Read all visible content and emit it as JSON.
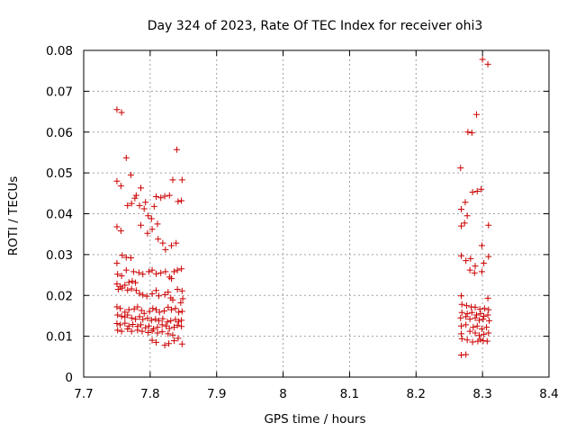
{
  "chart_data": {
    "type": "scatter",
    "title": "Day 324 of 2023, Rate Of TEC Index for receiver ohi3",
    "xlabel": "GPS time / hours",
    "ylabel": "ROTI / TECUs",
    "xlim": [
      7.7,
      8.4
    ],
    "ylim": [
      0,
      0.08
    ],
    "x_ticks": [
      "7.7",
      "7.8",
      "7.9",
      "8",
      "8.1",
      "8.2",
      "8.3",
      "8.4"
    ],
    "y_ticks": [
      "0",
      "0.01",
      "0.02",
      "0.03",
      "0.04",
      "0.05",
      "0.06",
      "0.07",
      "0.08"
    ],
    "grid": true,
    "marker": "plus",
    "color": "#cc0000",
    "points": [
      [
        7.75,
        0.0655
      ],
      [
        7.757,
        0.0648
      ],
      [
        7.764,
        0.0537
      ],
      [
        7.771,
        0.0495
      ],
      [
        7.75,
        0.048
      ],
      [
        7.756,
        0.0468
      ],
      [
        7.766,
        0.042
      ],
      [
        7.772,
        0.0425
      ],
      [
        7.777,
        0.0438
      ],
      [
        7.779,
        0.0445
      ],
      [
        7.786,
        0.0463
      ],
      [
        7.784,
        0.042
      ],
      [
        7.791,
        0.0412
      ],
      [
        7.793,
        0.0428
      ],
      [
        7.797,
        0.0395
      ],
      [
        7.802,
        0.0388
      ],
      [
        7.806,
        0.0418
      ],
      [
        7.809,
        0.0442
      ],
      [
        7.816,
        0.0439
      ],
      [
        7.822,
        0.0443
      ],
      [
        7.829,
        0.0445
      ],
      [
        7.834,
        0.0483
      ],
      [
        7.84,
        0.0557
      ],
      [
        7.842,
        0.043
      ],
      [
        7.848,
        0.0483
      ],
      [
        7.847,
        0.0432
      ],
      [
        7.75,
        0.0368
      ],
      [
        7.756,
        0.0358
      ],
      [
        7.786,
        0.0372
      ],
      [
        7.796,
        0.0352
      ],
      [
        7.803,
        0.0362
      ],
      [
        7.811,
        0.0375
      ],
      [
        7.812,
        0.0338
      ],
      [
        7.819,
        0.0328
      ],
      [
        7.823,
        0.0312
      ],
      [
        7.832,
        0.0322
      ],
      [
        7.839,
        0.0328
      ],
      [
        7.75,
        0.0279
      ],
      [
        7.758,
        0.0298
      ],
      [
        7.764,
        0.0293
      ],
      [
        7.771,
        0.0292
      ],
      [
        7.751,
        0.0252
      ],
      [
        7.757,
        0.0248
      ],
      [
        7.764,
        0.0262
      ],
      [
        7.775,
        0.0258
      ],
      [
        7.783,
        0.0256
      ],
      [
        7.789,
        0.0252
      ],
      [
        7.798,
        0.0258
      ],
      [
        7.803,
        0.0262
      ],
      [
        7.809,
        0.0253
      ],
      [
        7.816,
        0.0255
      ],
      [
        7.823,
        0.0258
      ],
      [
        7.829,
        0.0245
      ],
      [
        7.832,
        0.0241
      ],
      [
        7.836,
        0.0258
      ],
      [
        7.841,
        0.0262
      ],
      [
        7.847,
        0.0265
      ],
      [
        7.75,
        0.0228
      ],
      [
        7.755,
        0.0222
      ],
      [
        7.762,
        0.0225
      ],
      [
        7.768,
        0.0232
      ],
      [
        7.773,
        0.0235
      ],
      [
        7.778,
        0.0231
      ],
      [
        7.752,
        0.0215
      ],
      [
        7.758,
        0.0218
      ],
      [
        7.766,
        0.0213
      ],
      [
        7.772,
        0.0216
      ],
      [
        7.779,
        0.0212
      ],
      [
        7.784,
        0.0205
      ],
      [
        7.789,
        0.0201
      ],
      [
        7.795,
        0.0198
      ],
      [
        7.803,
        0.0204
      ],
      [
        7.809,
        0.0212
      ],
      [
        7.813,
        0.0199
      ],
      [
        7.822,
        0.0202
      ],
      [
        7.827,
        0.0208
      ],
      [
        7.831,
        0.0194
      ],
      [
        7.834,
        0.0189
      ],
      [
        7.841,
        0.0215
      ],
      [
        7.848,
        0.0211
      ],
      [
        7.849,
        0.0192
      ],
      [
        7.846,
        0.0182
      ],
      [
        7.75,
        0.0172
      ],
      [
        7.755,
        0.0168
      ],
      [
        7.762,
        0.0159
      ],
      [
        7.768,
        0.0165
      ],
      [
        7.776,
        0.0167
      ],
      [
        7.781,
        0.0172
      ],
      [
        7.787,
        0.0163
      ],
      [
        7.791,
        0.0156
      ],
      [
        7.799,
        0.0161
      ],
      [
        7.804,
        0.0168
      ],
      [
        7.809,
        0.0165
      ],
      [
        7.814,
        0.0159
      ],
      [
        7.821,
        0.0162
      ],
      [
        7.827,
        0.0171
      ],
      [
        7.832,
        0.0165
      ],
      [
        7.838,
        0.0168
      ],
      [
        7.843,
        0.0159
      ],
      [
        7.848,
        0.0161
      ],
      [
        7.751,
        0.0152
      ],
      [
        7.757,
        0.0149
      ],
      [
        7.762,
        0.0147
      ],
      [
        7.766,
        0.0152
      ],
      [
        7.772,
        0.0145
      ],
      [
        7.778,
        0.0142
      ],
      [
        7.784,
        0.0148
      ],
      [
        7.789,
        0.0141
      ],
      [
        7.796,
        0.0144
      ],
      [
        7.802,
        0.0139
      ],
      [
        7.808,
        0.0142
      ],
      [
        7.813,
        0.0138
      ],
      [
        7.819,
        0.0143
      ],
      [
        7.826,
        0.0135
      ],
      [
        7.831,
        0.0138
      ],
      [
        7.838,
        0.0141
      ],
      [
        7.843,
        0.0136
      ],
      [
        7.847,
        0.0139
      ],
      [
        7.75,
        0.0131
      ],
      [
        7.755,
        0.0128
      ],
      [
        7.762,
        0.0132
      ],
      [
        7.768,
        0.0125
      ],
      [
        7.774,
        0.0129
      ],
      [
        7.781,
        0.0124
      ],
      [
        7.786,
        0.0128
      ],
      [
        7.793,
        0.0121
      ],
      [
        7.798,
        0.0125
      ],
      [
        7.805,
        0.0118
      ],
      [
        7.811,
        0.0122
      ],
      [
        7.818,
        0.0128
      ],
      [
        7.824,
        0.0125
      ],
      [
        7.829,
        0.0119
      ],
      [
        7.836,
        0.0122
      ],
      [
        7.841,
        0.0127
      ],
      [
        7.847,
        0.0124
      ],
      [
        7.751,
        0.0115
      ],
      [
        7.757,
        0.0112
      ],
      [
        7.766,
        0.0118
      ],
      [
        7.772,
        0.0112
      ],
      [
        7.781,
        0.0115
      ],
      [
        7.788,
        0.0112
      ],
      [
        7.797,
        0.0109
      ],
      [
        7.803,
        0.0113
      ],
      [
        7.811,
        0.0108
      ],
      [
        7.818,
        0.0111
      ],
      [
        7.827,
        0.0106
      ],
      [
        7.834,
        0.0103
      ],
      [
        7.803,
        0.009
      ],
      [
        7.809,
        0.0085
      ],
      [
        7.822,
        0.0078
      ],
      [
        7.828,
        0.0082
      ],
      [
        7.836,
        0.0089
      ],
      [
        7.842,
        0.0095
      ],
      [
        7.848,
        0.0081
      ],
      [
        8.3,
        0.0778
      ],
      [
        8.308,
        0.0766
      ],
      [
        8.291,
        0.0643
      ],
      [
        8.278,
        0.06
      ],
      [
        8.284,
        0.0598
      ],
      [
        8.267,
        0.0512
      ],
      [
        8.285,
        0.0453
      ],
      [
        8.292,
        0.0455
      ],
      [
        8.298,
        0.046
      ],
      [
        8.274,
        0.0428
      ],
      [
        8.268,
        0.0411
      ],
      [
        8.277,
        0.0395
      ],
      [
        8.273,
        0.0377
      ],
      [
        8.268,
        0.037
      ],
      [
        8.309,
        0.0372
      ],
      [
        8.299,
        0.0322
      ],
      [
        8.268,
        0.0297
      ],
      [
        8.275,
        0.0285
      ],
      [
        8.282,
        0.029
      ],
      [
        8.289,
        0.0272
      ],
      [
        8.302,
        0.0279
      ],
      [
        8.309,
        0.0295
      ],
      [
        8.281,
        0.0262
      ],
      [
        8.288,
        0.0255
      ],
      [
        8.299,
        0.0258
      ],
      [
        8.268,
        0.0199
      ],
      [
        8.308,
        0.0193
      ],
      [
        8.269,
        0.0178
      ],
      [
        8.276,
        0.0175
      ],
      [
        8.283,
        0.0172
      ],
      [
        8.289,
        0.0171
      ],
      [
        8.296,
        0.0166
      ],
      [
        8.303,
        0.0168
      ],
      [
        8.309,
        0.0165
      ],
      [
        8.269,
        0.0158
      ],
      [
        8.277,
        0.0155
      ],
      [
        8.284,
        0.0158
      ],
      [
        8.291,
        0.0152
      ],
      [
        8.297,
        0.0155
      ],
      [
        8.302,
        0.0149
      ],
      [
        8.308,
        0.0152
      ],
      [
        8.267,
        0.0145
      ],
      [
        8.275,
        0.0148
      ],
      [
        8.281,
        0.0142
      ],
      [
        8.289,
        0.0145
      ],
      [
        8.295,
        0.0139
      ],
      [
        8.301,
        0.0142
      ],
      [
        8.31,
        0.0138
      ],
      [
        8.268,
        0.0125
      ],
      [
        8.275,
        0.0128
      ],
      [
        8.286,
        0.0122
      ],
      [
        8.292,
        0.0125
      ],
      [
        8.299,
        0.0118
      ],
      [
        8.306,
        0.0122
      ],
      [
        8.268,
        0.0106
      ],
      [
        8.281,
        0.0112
      ],
      [
        8.289,
        0.0108
      ],
      [
        8.295,
        0.0102
      ],
      [
        8.302,
        0.0105
      ],
      [
        8.309,
        0.0108
      ],
      [
        8.269,
        0.0094
      ],
      [
        8.277,
        0.0091
      ],
      [
        8.285,
        0.0086
      ],
      [
        8.293,
        0.0088
      ],
      [
        8.297,
        0.0092
      ],
      [
        8.301,
        0.0089
      ],
      [
        8.307,
        0.0088
      ],
      [
        8.268,
        0.0054
      ],
      [
        8.275,
        0.0055
      ]
    ]
  }
}
